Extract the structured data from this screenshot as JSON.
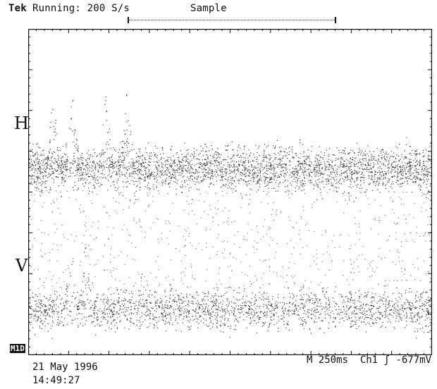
{
  "header": {
    "brand": "Tek",
    "run_state": "Running: 200 S/s",
    "acq_mode": "Sample"
  },
  "screen": {
    "grid": true,
    "background": "#ffffff",
    "trace_color": "#111111",
    "channels": [
      {
        "label": "H",
        "baseline_fraction": 0.43
      },
      {
        "label": "V",
        "baseline_fraction": 0.86
      }
    ]
  },
  "ref_marker": "M1D",
  "footer": {
    "date": "21 May 1996",
    "time": "14:49:27",
    "timebase": "M 250ms",
    "channel": "Ch1",
    "trigger_slope_icon": "rising-edge-icon",
    "trigger_level": "-677mV"
  }
}
